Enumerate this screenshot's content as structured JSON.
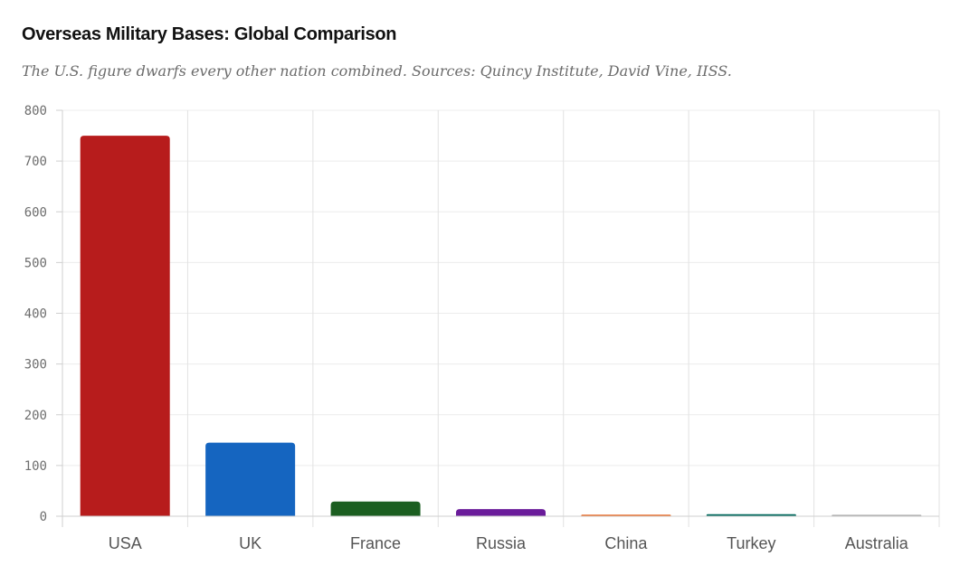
{
  "chart_data": {
    "type": "bar",
    "title": "Overseas Military Bases: Global Comparison",
    "subtitle": "The U.S. figure dwarfs every other nation combined. Sources: Quincy Institute, David Vine, IISS.",
    "categories": [
      "USA",
      "UK",
      "France",
      "Russia",
      "China",
      "Turkey",
      "Australia"
    ],
    "values": [
      750,
      145,
      29,
      14,
      3,
      4,
      1
    ],
    "colors": [
      "#b71c1c",
      "#1565c0",
      "#1b5e20",
      "#6a1b9a",
      "#e65100",
      "#00695c",
      "#9e9e9e"
    ],
    "ylim": [
      0,
      800
    ],
    "yticks": [
      0,
      100,
      200,
      300,
      400,
      500,
      600,
      700,
      800
    ],
    "grid": true,
    "legend": "none"
  }
}
